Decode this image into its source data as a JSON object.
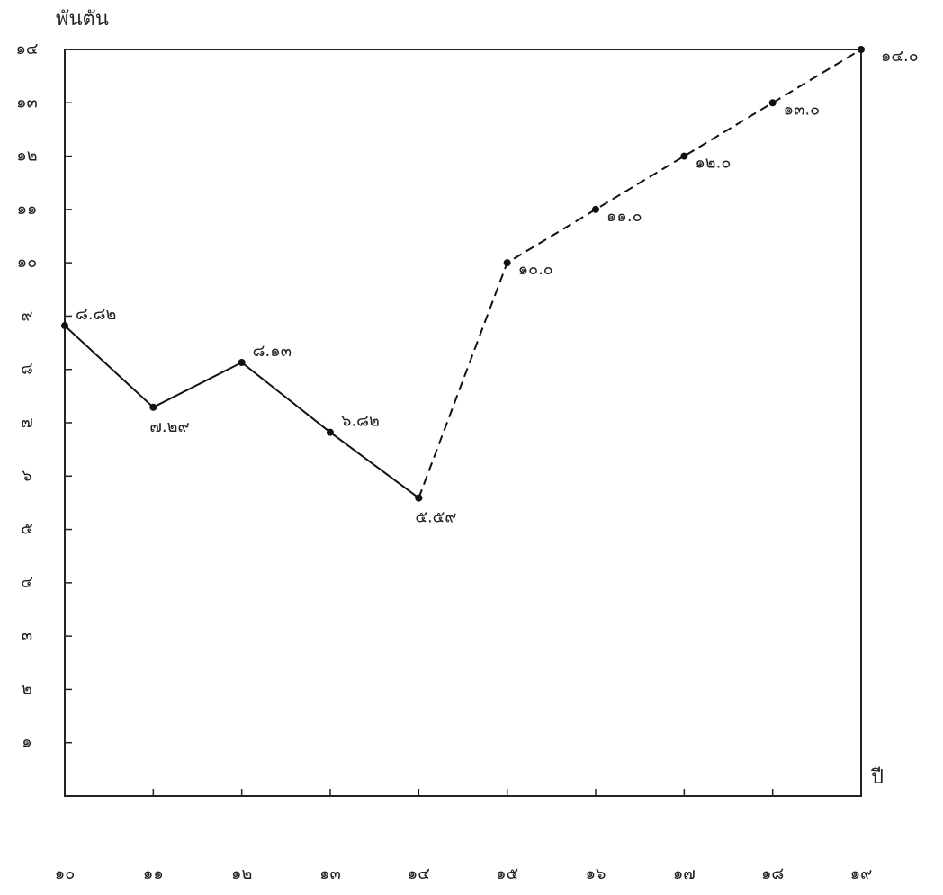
{
  "chart_data": {
    "type": "line",
    "ylabel": "พันตัน",
    "xlabel": "ปี",
    "categories": [
      "๑๐",
      "๑๑",
      "๑๒",
      "๑๓",
      "๑๔",
      "๑๕",
      "๑๖",
      "๑๗",
      "๑๘",
      "๑๙"
    ],
    "series": [
      {
        "color": "#111111",
        "dashed": false,
        "values": [
          8.82,
          7.29,
          8.13,
          6.82,
          5.59,
          null,
          null,
          null,
          null,
          null
        ],
        "value_labels": [
          "๘.๘๒",
          "๗.๒๙",
          "๘.๑๓",
          "๖.๘๒",
          "๕.๕๙",
          null,
          null,
          null,
          null,
          null
        ]
      },
      {
        "color": "#111111",
        "dashed": true,
        "values": [
          null,
          null,
          null,
          null,
          5.59,
          10.0,
          11.0,
          12.0,
          13.0,
          14.0
        ],
        "value_labels": [
          null,
          null,
          null,
          null,
          null,
          "๑๐.๐",
          "๑๑.๐",
          "๑๒.๐",
          "๑๓.๐",
          "๑๔.๐"
        ]
      }
    ],
    "ylim": [
      0,
      14
    ],
    "yticks": [
      {
        "value": 1,
        "label": "๑"
      },
      {
        "value": 2,
        "label": "๒"
      },
      {
        "value": 3,
        "label": "๓"
      },
      {
        "value": 4,
        "label": "๔"
      },
      {
        "value": 5,
        "label": "๕"
      },
      {
        "value": 6,
        "label": "๖"
      },
      {
        "value": 7,
        "label": "๗"
      },
      {
        "value": 8,
        "label": "๘"
      },
      {
        "value": 9,
        "label": "๙"
      },
      {
        "value": 10,
        "label": "๑๐"
      },
      {
        "value": 11,
        "label": "๑๑"
      },
      {
        "value": 12,
        "label": "๑๒"
      },
      {
        "value": 13,
        "label": "๑๓"
      },
      {
        "value": 14,
        "label": "๑๔"
      }
    ],
    "grid": false
  }
}
